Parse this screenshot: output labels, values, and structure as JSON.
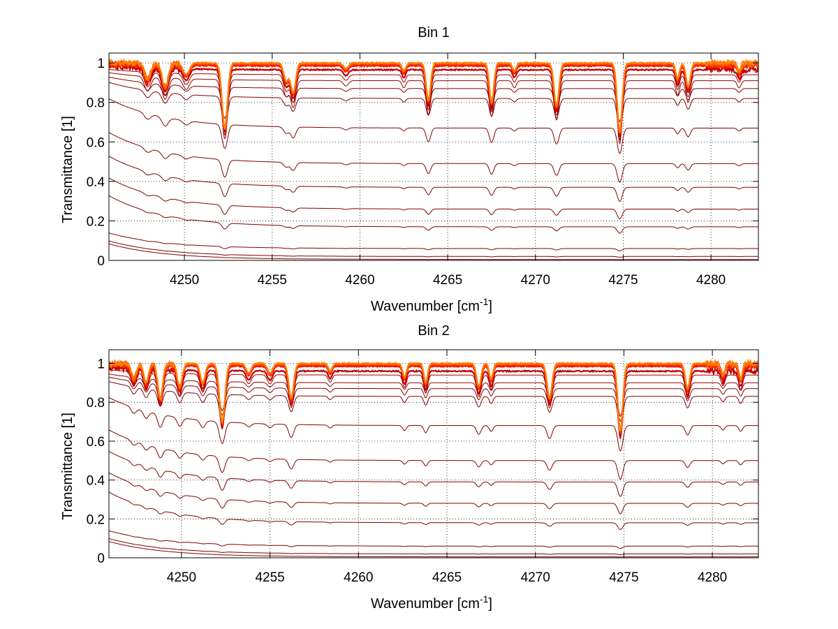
{
  "chart_data": [
    {
      "type": "line",
      "title": "Bin 1",
      "xlabel": "Wavenumber [cm",
      "xlabel_sup": "-1",
      "xlabel_end": "]",
      "ylabel": "Transmittance [1]",
      "xlim": [
        4245.7,
        4282.7
      ],
      "ylim": [
        0,
        1.05
      ],
      "xticks": [
        4250,
        4255,
        4260,
        4265,
        4270,
        4275,
        4280
      ],
      "xtick_labels": [
        "4250",
        "4255",
        "4260",
        "4265",
        "4270",
        "4275",
        "4280"
      ],
      "yticks": [
        0,
        0.2,
        0.4,
        0.6,
        0.8,
        1
      ],
      "ytick_labels": [
        "0",
        "0.2",
        "0.4",
        "0.6",
        "0.8",
        "1"
      ],
      "grid": true,
      "legend": "none",
      "absorption_lines": [
        {
          "x": 4247.9,
          "depth": 0.08,
          "width": 0.25
        },
        {
          "x": 4248.9,
          "depth": 0.12,
          "width": 0.25
        },
        {
          "x": 4250.1,
          "depth": 0.06,
          "width": 0.25
        },
        {
          "x": 4252.3,
          "depth": 0.33,
          "width": 0.22
        },
        {
          "x": 4255.8,
          "depth": 0.09,
          "width": 0.2
        },
        {
          "x": 4256.2,
          "depth": 0.15,
          "width": 0.2
        },
        {
          "x": 4259.2,
          "depth": 0.03,
          "width": 0.2
        },
        {
          "x": 4262.5,
          "depth": 0.04,
          "width": 0.15
        },
        {
          "x": 4263.9,
          "depth": 0.19,
          "width": 0.18
        },
        {
          "x": 4267.5,
          "depth": 0.2,
          "width": 0.18
        },
        {
          "x": 4268.8,
          "depth": 0.04,
          "width": 0.15
        },
        {
          "x": 4271.2,
          "depth": 0.22,
          "width": 0.2
        },
        {
          "x": 4274.8,
          "depth": 0.35,
          "width": 0.2
        },
        {
          "x": 4278.1,
          "depth": 0.08,
          "width": 0.15
        },
        {
          "x": 4278.7,
          "depth": 0.12,
          "width": 0.18
        },
        {
          "x": 4281.6,
          "depth": 0.04,
          "width": 0.15
        }
      ],
      "series": [
        {
          "values_hint": "baseline",
          "level": 1.0,
          "color": "#ff8000"
        },
        {
          "level": 0.995,
          "color": "#ff5000"
        },
        {
          "level": 0.99,
          "color": "#ff2000"
        },
        {
          "level": 0.985,
          "color": "#f01000"
        },
        {
          "level": 0.965,
          "color": "#c00000"
        },
        {
          "level": 0.94,
          "color": "#a00000"
        },
        {
          "level": 0.91,
          "color": "#900000"
        },
        {
          "level": 0.87,
          "color": "#880000"
        },
        {
          "level": 0.82,
          "color": "#800000"
        },
        {
          "level": 0.67,
          "color": "#800000"
        },
        {
          "level": 0.49,
          "color": "#800000"
        },
        {
          "level": 0.37,
          "color": "#800000"
        },
        {
          "level": 0.26,
          "color": "#800000"
        },
        {
          "level": 0.17,
          "color": "#800000"
        },
        {
          "level": 0.06,
          "color": "#800000"
        },
        {
          "level": 0.02,
          "color": "#800000"
        },
        {
          "level": 0.005,
          "color": "#800000"
        }
      ]
    },
    {
      "type": "line",
      "title": "Bin 2",
      "xlabel": "Wavenumber [cm",
      "xlabel_sup": "-1",
      "xlabel_end": "]",
      "ylabel": "Transmittance [1]",
      "xlim": [
        4245.9,
        4282.6
      ],
      "ylim": [
        0,
        1.07
      ],
      "xticks": [
        4250,
        4255,
        4260,
        4265,
        4270,
        4275,
        4280
      ],
      "xtick_labels": [
        "4250",
        "4255",
        "4260",
        "4265",
        "4270",
        "4275",
        "4280"
      ],
      "yticks": [
        0,
        0.2,
        0.4,
        0.6,
        0.8,
        1
      ],
      "ytick_labels": [
        "0",
        "0.2",
        "0.4",
        "0.6",
        "0.8",
        "1"
      ],
      "grid": true,
      "legend": "none",
      "absorption_lines": [
        {
          "x": 4247.3,
          "depth": 0.08,
          "width": 0.2
        },
        {
          "x": 4248.0,
          "depth": 0.1,
          "width": 0.2
        },
        {
          "x": 4248.8,
          "depth": 0.18,
          "width": 0.2
        },
        {
          "x": 4249.9,
          "depth": 0.12,
          "width": 0.2
        },
        {
          "x": 4251.2,
          "depth": 0.1,
          "width": 0.2
        },
        {
          "x": 4252.3,
          "depth": 0.3,
          "width": 0.22
        },
        {
          "x": 4253.8,
          "depth": 0.05,
          "width": 0.2
        },
        {
          "x": 4255.0,
          "depth": 0.05,
          "width": 0.2
        },
        {
          "x": 4256.2,
          "depth": 0.18,
          "width": 0.2
        },
        {
          "x": 4258.4,
          "depth": 0.04,
          "width": 0.15
        },
        {
          "x": 4262.6,
          "depth": 0.07,
          "width": 0.15
        },
        {
          "x": 4263.8,
          "depth": 0.1,
          "width": 0.15
        },
        {
          "x": 4266.8,
          "depth": 0.12,
          "width": 0.18
        },
        {
          "x": 4267.5,
          "depth": 0.08,
          "width": 0.15
        },
        {
          "x": 4270.8,
          "depth": 0.18,
          "width": 0.2
        },
        {
          "x": 4274.8,
          "depth": 0.35,
          "width": 0.2
        },
        {
          "x": 4278.6,
          "depth": 0.13,
          "width": 0.18
        },
        {
          "x": 4280.6,
          "depth": 0.06,
          "width": 0.15
        },
        {
          "x": 4281.6,
          "depth": 0.08,
          "width": 0.15
        }
      ],
      "series": [
        {
          "level": 1.0,
          "color": "#ff8000"
        },
        {
          "level": 0.995,
          "color": "#ff5000"
        },
        {
          "level": 0.99,
          "color": "#ff2000"
        },
        {
          "level": 0.985,
          "color": "#f01000"
        },
        {
          "level": 0.96,
          "color": "#c00000"
        },
        {
          "level": 0.94,
          "color": "#a00000"
        },
        {
          "level": 0.9,
          "color": "#900000"
        },
        {
          "level": 0.87,
          "color": "#880000"
        },
        {
          "level": 0.83,
          "color": "#800000"
        },
        {
          "level": 0.68,
          "color": "#800000"
        },
        {
          "level": 0.5,
          "color": "#800000"
        },
        {
          "level": 0.39,
          "color": "#800000"
        },
        {
          "level": 0.28,
          "color": "#800000"
        },
        {
          "level": 0.18,
          "color": "#800000"
        },
        {
          "level": 0.06,
          "color": "#800000"
        },
        {
          "level": 0.02,
          "color": "#800000"
        },
        {
          "level": 0.005,
          "color": "#800000"
        }
      ]
    }
  ]
}
